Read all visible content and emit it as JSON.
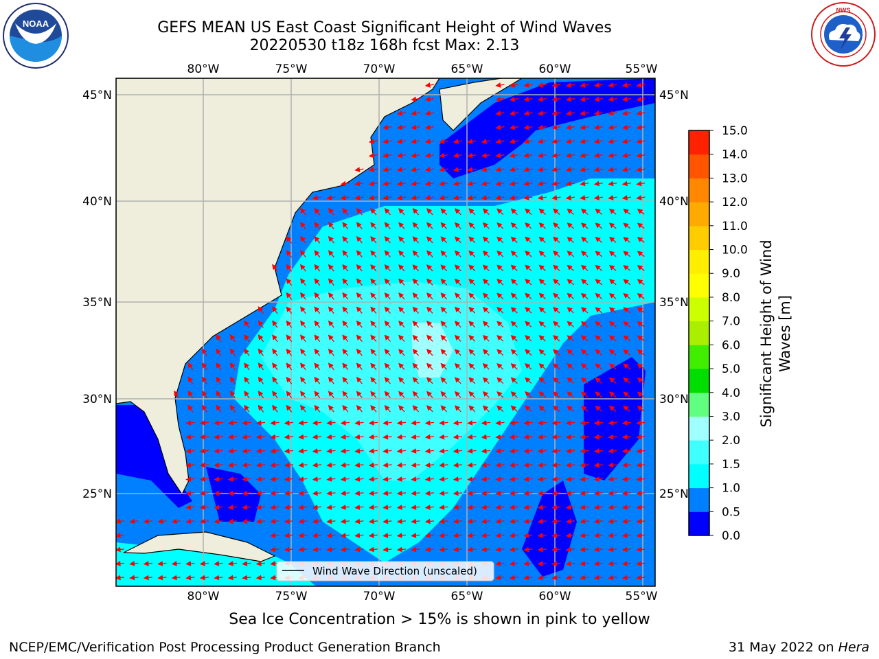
{
  "header": {
    "title_line1": "GEFS MEAN US East Coast Significant Height of Wind Waves",
    "title_line2": "20220530 t18z 168h fcst   Max: 2.13"
  },
  "logos": {
    "left": "NOAA",
    "left_ring_text": "NATIONAL OCEANIC AND ATMOSPHERIC ADMINISTRATION · U.S. DEPARTMENT OF COMMERCE",
    "right_ring_text": "NATIONAL WEATHER SERVICE"
  },
  "map": {
    "lon_labels": [
      "80°W",
      "75°W",
      "70°W",
      "65°W",
      "60°W",
      "55°W"
    ],
    "lat_labels": [
      "45°N",
      "40°N",
      "35°N",
      "30°N",
      "25°N"
    ],
    "legend_label": "Wind Wave Direction (unscaled)",
    "colors": {
      "land": "#efeedc",
      "ocean_lt05": "#0000ff",
      "ocean_05_1": "#0080ff",
      "ocean_1_15": "#00ffff",
      "ocean_15_2": "#40ffff",
      "ocean_2_3": "#a0ffff",
      "arrow": "#ff0000",
      "grid": "#b0b0b0"
    }
  },
  "colorbar": {
    "label": "Significant Height of Wind Waves [m]",
    "ticks": [
      "0.0",
      "0.5",
      "1.0",
      "1.5",
      "2.0",
      "3.0",
      "4.0",
      "5.0",
      "6.0",
      "7.0",
      "8.0",
      "9.0",
      "10.0",
      "11.0",
      "12.0",
      "13.0",
      "14.0",
      "15.0"
    ],
    "colors": [
      "#0000ff",
      "#0080ff",
      "#00ffff",
      "#40ffff",
      "#a0ffff",
      "#60ff80",
      "#00dd00",
      "#40ee00",
      "#aaee00",
      "#ccff00",
      "#ffff00",
      "#ffee00",
      "#ffcc00",
      "#ffaa00",
      "#ff8800",
      "#ff5500",
      "#ff2200"
    ]
  },
  "footer": {
    "note": "Sea Ice Concentration > 15% is shown in pink to yellow",
    "left": "NCEP/EMC/Verification Post Processing Product Generation Branch",
    "right_date": "31 May 2022 on",
    "right_host": "Hera"
  }
}
